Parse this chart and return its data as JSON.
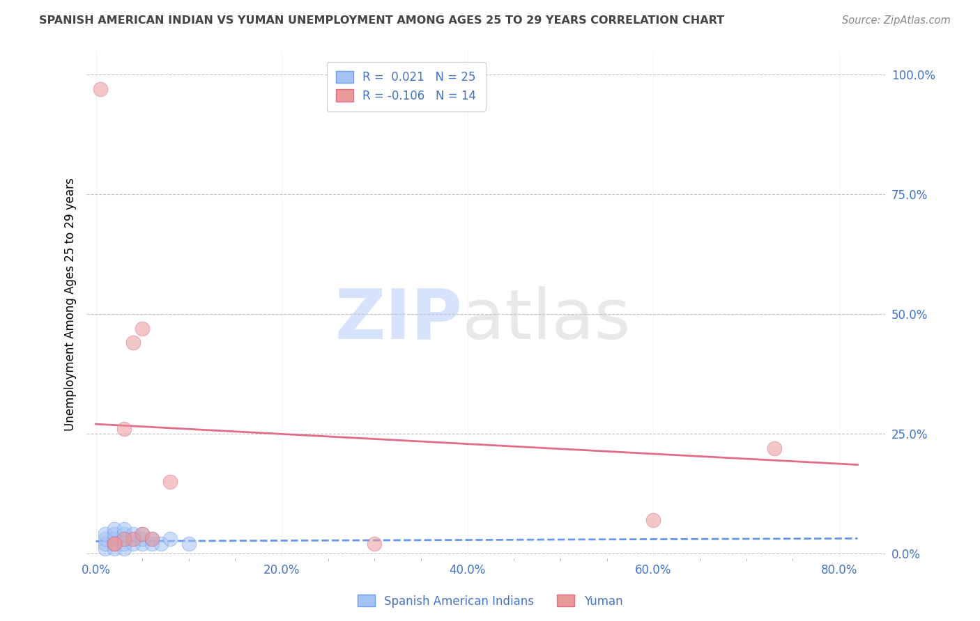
{
  "title": "SPANISH AMERICAN INDIAN VS YUMAN UNEMPLOYMENT AMONG AGES 25 TO 29 YEARS CORRELATION CHART",
  "source": "Source: ZipAtlas.com",
  "xlabel_ticks": [
    "0.0%",
    "",
    "",
    "",
    "20.0%",
    "",
    "",
    "",
    "40.0%",
    "",
    "",
    "",
    "60.0%",
    "",
    "",
    "",
    "80.0%"
  ],
  "xlabel_vals": [
    0.0,
    0.05,
    0.1,
    0.15,
    0.2,
    0.25,
    0.3,
    0.35,
    0.4,
    0.45,
    0.5,
    0.55,
    0.6,
    0.65,
    0.7,
    0.75,
    0.8
  ],
  "xlabel_major_ticks": [
    "0.0%",
    "20.0%",
    "40.0%",
    "60.0%",
    "80.0%"
  ],
  "xlabel_major_vals": [
    0.0,
    0.2,
    0.4,
    0.6,
    0.8
  ],
  "ylabel_ticks": [
    "0.0%",
    "25.0%",
    "50.0%",
    "75.0%",
    "100.0%"
  ],
  "ylabel_vals": [
    0.0,
    0.25,
    0.5,
    0.75,
    1.0
  ],
  "ylabel_label": "Unemployment Among Ages 25 to 29 years",
  "blue_R": 0.021,
  "blue_N": 25,
  "pink_R": -0.106,
  "pink_N": 14,
  "blue_color": "#a4c2f4",
  "pink_color": "#ea9999",
  "blue_edge_color": "#6d9eeb",
  "pink_edge_color": "#e06c8a",
  "blue_line_color": "#4a86e8",
  "pink_line_color": "#e06c8a",
  "grid_color": "#b0b0b0",
  "title_color": "#444444",
  "tick_label_color": "#4472c4",
  "watermark_color_zip": "#a4c2f4",
  "watermark_color_atlas": "#cccccc",
  "blue_scatter_x": [
    0.01,
    0.01,
    0.01,
    0.01,
    0.02,
    0.02,
    0.02,
    0.02,
    0.02,
    0.03,
    0.03,
    0.03,
    0.03,
    0.03,
    0.04,
    0.04,
    0.04,
    0.05,
    0.05,
    0.05,
    0.06,
    0.06,
    0.07,
    0.08,
    0.1
  ],
  "blue_scatter_y": [
    0.01,
    0.02,
    0.03,
    0.04,
    0.01,
    0.02,
    0.03,
    0.04,
    0.05,
    0.01,
    0.02,
    0.03,
    0.04,
    0.05,
    0.02,
    0.03,
    0.04,
    0.02,
    0.03,
    0.04,
    0.02,
    0.03,
    0.02,
    0.03,
    0.02
  ],
  "pink_scatter_x": [
    0.005,
    0.04,
    0.05,
    0.6,
    0.73,
    0.03,
    0.08,
    0.04,
    0.05,
    0.3,
    0.02,
    0.06,
    0.03,
    0.02
  ],
  "pink_scatter_y": [
    0.97,
    0.44,
    0.47,
    0.07,
    0.22,
    0.26,
    0.15,
    0.03,
    0.04,
    0.02,
    0.02,
    0.03,
    0.03,
    0.02
  ],
  "pink_trend_x0": 0.0,
  "pink_trend_y0": 0.27,
  "pink_trend_x1": 0.82,
  "pink_trend_y1": 0.185,
  "blue_trend_x0": 0.0,
  "blue_trend_y0": 0.025,
  "blue_trend_x1": 0.82,
  "blue_trend_y1": 0.031,
  "xlim": [
    -0.01,
    0.85
  ],
  "ylim": [
    -0.01,
    1.05
  ]
}
